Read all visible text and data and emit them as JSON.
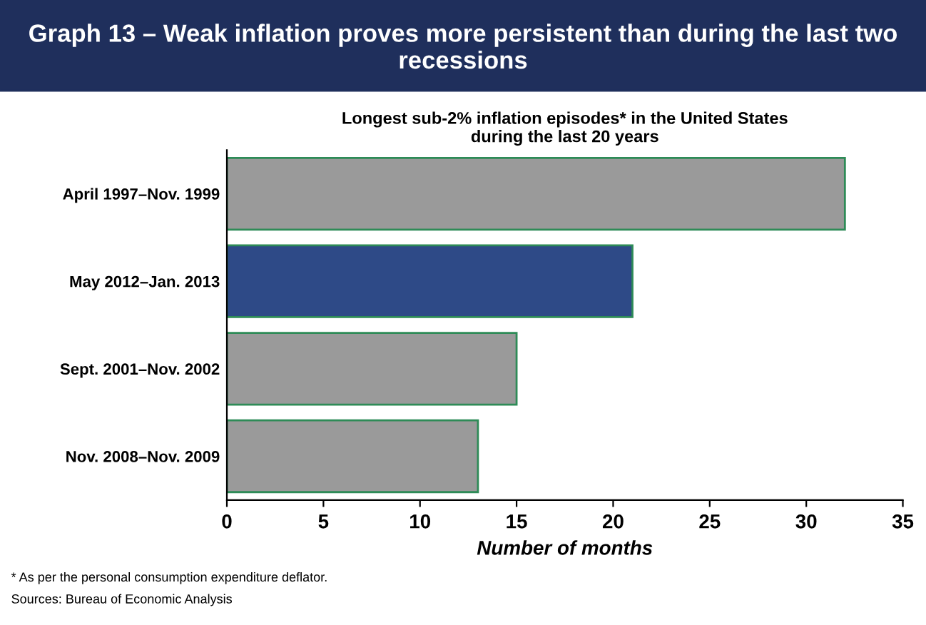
{
  "chart_data": {
    "type": "bar",
    "orientation": "horizontal",
    "title": "Graph 13 – Weak inflation proves more persistent than during the last two recessions",
    "subtitle": "Longest sub-2% inflation episodes* in the United States\nduring the last 20 years",
    "xlabel": "Number of months",
    "categories": [
      "April 1997–Nov. 1999",
      "May 2012–Jan. 2013",
      "Sept. 2001–Nov. 2002",
      "Nov. 2008–Nov. 2009"
    ],
    "values": [
      32,
      21,
      15,
      13
    ],
    "colors": [
      "#9a9a9a",
      "#2e4a87",
      "#9a9a9a",
      "#9a9a9a"
    ],
    "xlim": [
      0,
      35
    ],
    "xticks": [
      0,
      5,
      10,
      15,
      20,
      25,
      30,
      35
    ],
    "grid": false,
    "legend": false,
    "annotations": [
      "* As per the personal consumption expenditure deflator.",
      "Sources: Bureau of Economic Analysis"
    ]
  }
}
